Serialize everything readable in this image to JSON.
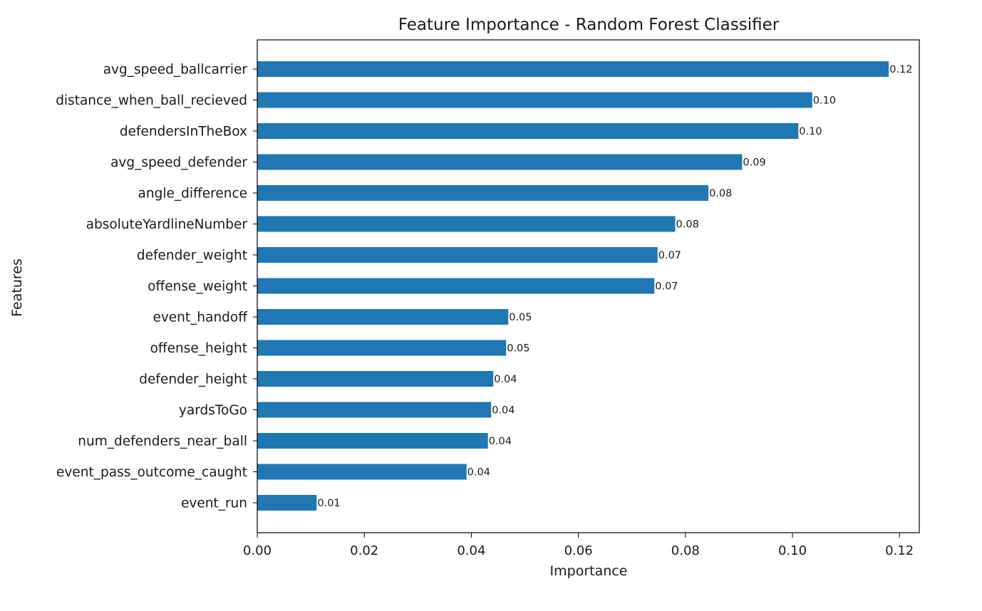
{
  "chart_data": {
    "type": "bar",
    "orientation": "horizontal",
    "title": "Feature Importance - Random Forest Classifier",
    "xlabel": "Importance",
    "ylabel": "Features",
    "xlim": [
      0,
      0.1237
    ],
    "xticks": [
      "0.00",
      "0.02",
      "0.04",
      "0.06",
      "0.08",
      "0.10",
      "0.12"
    ],
    "xtick_values": [
      0,
      0.02,
      0.04,
      0.06,
      0.08,
      0.1,
      0.12
    ],
    "bar_color": "#1f77b4",
    "grid": false,
    "categories": [
      "avg_speed_ballcarrier",
      "distance_when_ball_recieved",
      "defendersInTheBox",
      "avg_speed_defender",
      "angle_difference",
      "absoluteYardlineNumber",
      "defender_weight",
      "offense_weight",
      "event_handoff",
      "offense_height",
      "defender_height",
      "yardsToGo",
      "num_defenders_near_ball",
      "event_pass_outcome_caught",
      "event_run"
    ],
    "values": [
      0.118,
      0.1037,
      0.1011,
      0.0906,
      0.0843,
      0.0781,
      0.0748,
      0.0742,
      0.0469,
      0.0465,
      0.0441,
      0.0437,
      0.0431,
      0.0391,
      0.0111
    ],
    "data_labels": [
      "0.12",
      "0.10",
      "0.10",
      "0.09",
      "0.08",
      "0.08",
      "0.07",
      "0.07",
      "0.05",
      "0.05",
      "0.04",
      "0.04",
      "0.04",
      "0.04",
      "0.01"
    ]
  }
}
